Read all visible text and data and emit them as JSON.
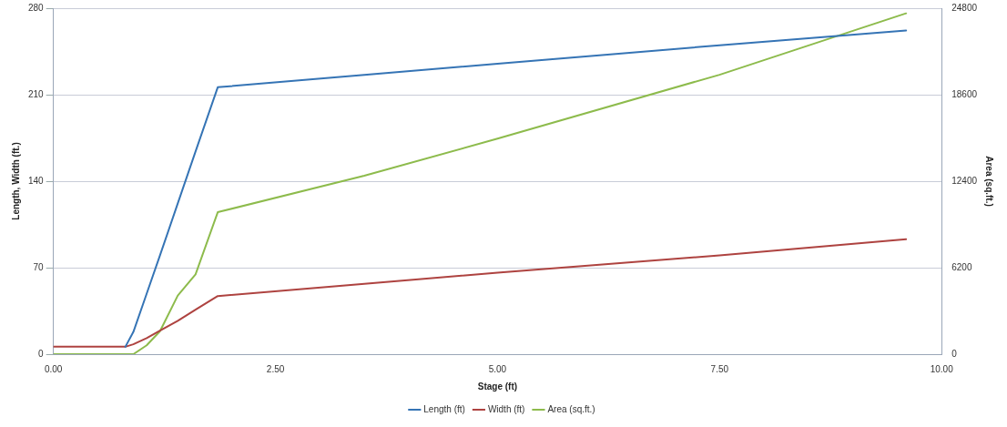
{
  "chart_data": {
    "type": "line",
    "xlabel": "Stage (ft)",
    "ylabel": "Length, Width (ft.)",
    "y2label": "Area (sq.ft.)",
    "x": [
      0,
      0.81,
      0.9,
      1.05,
      1.2,
      1.4,
      1.6,
      1.85,
      3.5,
      5,
      7.5,
      9.6
    ],
    "series": [
      {
        "name": "Length (ft)",
        "color": "#3574b5",
        "values": [
          null,
          6,
          18,
          49,
          80,
          122,
          164,
          216,
          226,
          235,
          250,
          262
        ]
      },
      {
        "name": "Width (ft)",
        "color": "#ae4340",
        "values": [
          6,
          6,
          8,
          13,
          19,
          27,
          36,
          47,
          57,
          66,
          80,
          93
        ]
      },
      {
        "name": "Area (sq.ft.)",
        "color": "#8dbb4c",
        "axis": "y2",
        "values": [
          0,
          0,
          0,
          636,
          1650,
          4200,
          5720,
          10175,
          12790,
          15450,
          20030,
          24430
        ]
      }
    ],
    "xlim": [
      0,
      10
    ],
    "xticks": [
      {
        "value": 0,
        "label": "0.00"
      },
      {
        "value": 2.5,
        "label": "2.50"
      },
      {
        "value": 5,
        "label": "5.00"
      },
      {
        "value": 7.5,
        "label": "7.50"
      },
      {
        "value": 10,
        "label": "10.00"
      }
    ],
    "ylim": [
      0,
      280
    ],
    "yticks": [
      0,
      70,
      140,
      210,
      280
    ],
    "y2lim": [
      0,
      24800
    ],
    "y2ticks": [
      0,
      6200,
      12400,
      18600,
      24800
    ],
    "grid": "y",
    "legend": "bottom",
    "marker": "none",
    "line_style": "solid"
  }
}
